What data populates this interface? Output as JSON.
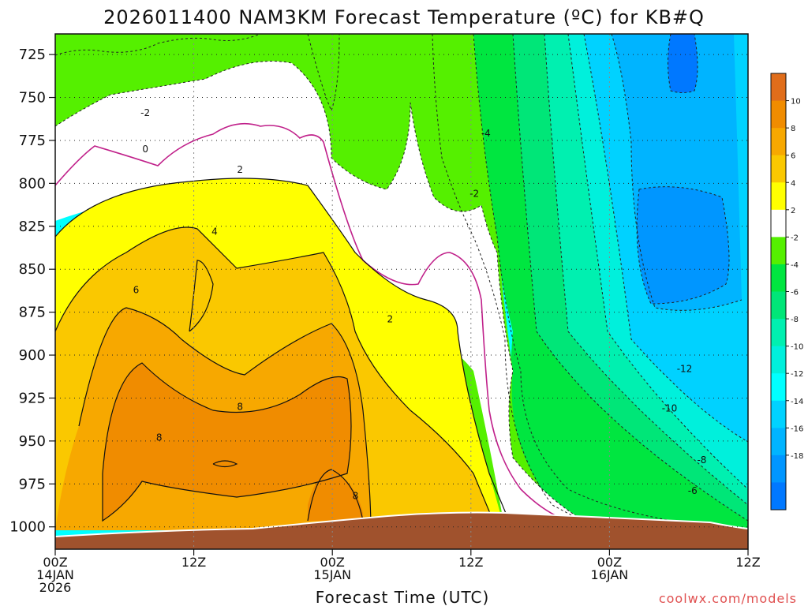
{
  "chart_data": {
    "type": "heatmap",
    "title": "2026011400 NAM3KM Forecast Temperature (ºC) for KB#Q",
    "xlabel": "Forecast Time (UTC)",
    "ylabel": "",
    "credit": "coolwx.com/models",
    "y_axis": {
      "ticks": [
        725,
        750,
        775,
        800,
        825,
        850,
        875,
        900,
        925,
        950,
        975,
        1000
      ],
      "ylim": [
        1013,
        713
      ],
      "inverted": true,
      "grid": true
    },
    "x_axis": {
      "xlim_hours": [
        0,
        60
      ],
      "grid": true,
      "ticks": [
        {
          "hour": 0,
          "line1": "00Z",
          "line2": "14JAN",
          "line3": "2026"
        },
        {
          "hour": 12,
          "line1": "12Z",
          "line2": "",
          "line3": ""
        },
        {
          "hour": 24,
          "line1": "00Z",
          "line2": "15JAN",
          "line3": ""
        },
        {
          "hour": 36,
          "line1": "12Z",
          "line2": "",
          "line3": ""
        },
        {
          "hour": 48,
          "line1": "00Z",
          "line2": "16JAN",
          "line3": ""
        },
        {
          "hour": 60,
          "line1": "12Z",
          "line2": "",
          "line3": ""
        }
      ]
    },
    "colorbar": {
      "ticks": [
        "10",
        "8",
        "6",
        "4",
        "2",
        "-2",
        "-4",
        "-6",
        "-8",
        "-10",
        "-12",
        "-14",
        "-16",
        "-18"
      ],
      "levels": [
        {
          "color": "#e06d1a"
        },
        {
          "color": "#f08c00"
        },
        {
          "color": "#f7a800"
        },
        {
          "color": "#fac800"
        },
        {
          "color": "#ffff00"
        },
        {
          "color": "#ffffff"
        },
        {
          "color": "#55f000"
        },
        {
          "color": "#00e640"
        },
        {
          "color": "#00e678"
        },
        {
          "color": "#00f0b0"
        },
        {
          "color": "#00f0dc"
        },
        {
          "color": "#00ffff"
        },
        {
          "color": "#00d2ff"
        },
        {
          "color": "#00b4ff"
        },
        {
          "color": "#0096ff"
        },
        {
          "color": "#0078ff"
        }
      ]
    },
    "contour_labels": [
      {
        "text": "-2",
        "hour": 7.8,
        "p": 759
      },
      {
        "text": "0",
        "hour": 7.8,
        "p": 780
      },
      {
        "text": "2",
        "hour": 16,
        "p": 792
      },
      {
        "text": "4",
        "hour": 13.8,
        "p": 828
      },
      {
        "text": "6",
        "hour": 7,
        "p": 862
      },
      {
        "text": "8",
        "hour": 16,
        "p": 930
      },
      {
        "text": "8",
        "hour": 9,
        "p": 948
      },
      {
        "text": "8",
        "hour": 26,
        "p": 982
      },
      {
        "text": "2",
        "hour": 29,
        "p": 879
      },
      {
        "text": "-4",
        "hour": 37.3,
        "p": 771
      },
      {
        "text": "-2",
        "hour": 36.3,
        "p": 806
      },
      {
        "text": "-12",
        "hour": 54.5,
        "p": 908
      },
      {
        "text": "-10",
        "hour": 53.2,
        "p": 931
      },
      {
        "text": "-8",
        "hour": 56,
        "p": 961
      },
      {
        "text": "-6",
        "hour": 55.2,
        "p": 979
      }
    ]
  }
}
